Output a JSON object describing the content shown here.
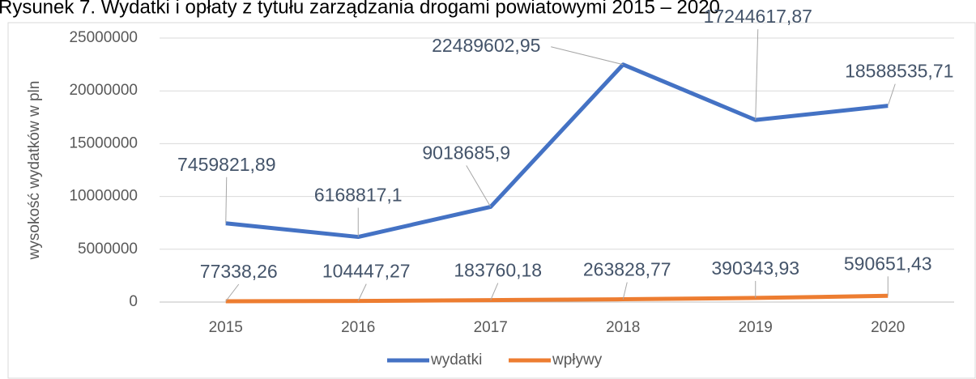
{
  "chart_data": {
    "type": "line",
    "title": "Rysunek 7. Wydatki i opłaty z tytułu zarządzania drogami powiatowymi 2015 – 2020",
    "y_label": "wysokość wydatków w pln",
    "categories": [
      "2015",
      "2016",
      "2017",
      "2018",
      "2019",
      "2020"
    ],
    "series": [
      {
        "name": "wydatki",
        "color": "#4472c4",
        "values": [
          7459821.89,
          6168817.1,
          9018685.9,
          22489602.95,
          17244617.87,
          18588535.71
        ],
        "value_labels": [
          "7459821,89",
          "6168817,1",
          "9018685,9",
          "22489602,95",
          "17244617,87",
          "18588535,71"
        ]
      },
      {
        "name": "wpływy",
        "color": "#ed7d31",
        "values": [
          77338.26,
          104447.27,
          183760.18,
          263828.77,
          390343.93,
          590651.43
        ],
        "value_labels": [
          "77338,26",
          "104447,27",
          "183760,18",
          "263828,77",
          "390343,93",
          "590651,43"
        ]
      }
    ],
    "ylim": [
      0,
      25000000
    ],
    "yticks": [
      0,
      5000000,
      10000000,
      15000000,
      20000000,
      25000000
    ],
    "grid": true,
    "legend": "bottom"
  }
}
